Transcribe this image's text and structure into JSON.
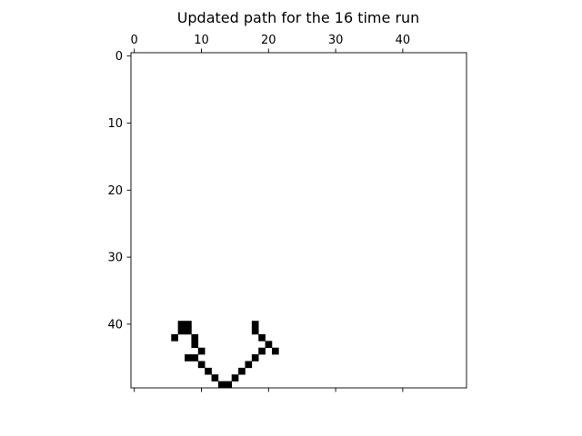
{
  "chart_data": {
    "type": "heatmap",
    "title": "Updated path for the 16 time run",
    "xlabel": "",
    "ylabel": "",
    "grid_size": [
      50,
      50
    ],
    "xlim": [
      -0.5,
      49.5
    ],
    "ylim": [
      49.5,
      -0.5
    ],
    "x_ticks": [
      0,
      10,
      20,
      30,
      40
    ],
    "y_ticks": [
      0,
      10,
      20,
      30,
      40
    ],
    "x_axis_position": "top",
    "y_axis_inverted": true,
    "grid": false,
    "background_color": "#ffffff",
    "filled_color": "#000000",
    "filled_cells": [
      {
        "x": 7,
        "y": 40
      },
      {
        "x": 8,
        "y": 40
      },
      {
        "x": 7,
        "y": 41
      },
      {
        "x": 8,
        "y": 41
      },
      {
        "x": 6,
        "y": 42
      },
      {
        "x": 9,
        "y": 42
      },
      {
        "x": 9,
        "y": 43
      },
      {
        "x": 10,
        "y": 44
      },
      {
        "x": 8,
        "y": 45
      },
      {
        "x": 9,
        "y": 45
      },
      {
        "x": 10,
        "y": 46
      },
      {
        "x": 11,
        "y": 47
      },
      {
        "x": 12,
        "y": 48
      },
      {
        "x": 13,
        "y": 49
      },
      {
        "x": 14,
        "y": 49
      },
      {
        "x": 15,
        "y": 48
      },
      {
        "x": 16,
        "y": 47
      },
      {
        "x": 17,
        "y": 46
      },
      {
        "x": 18,
        "y": 45
      },
      {
        "x": 19,
        "y": 44
      },
      {
        "x": 20,
        "y": 43
      },
      {
        "x": 19,
        "y": 42
      },
      {
        "x": 18,
        "y": 41
      },
      {
        "x": 18,
        "y": 40
      },
      {
        "x": 21,
        "y": 44
      }
    ]
  }
}
